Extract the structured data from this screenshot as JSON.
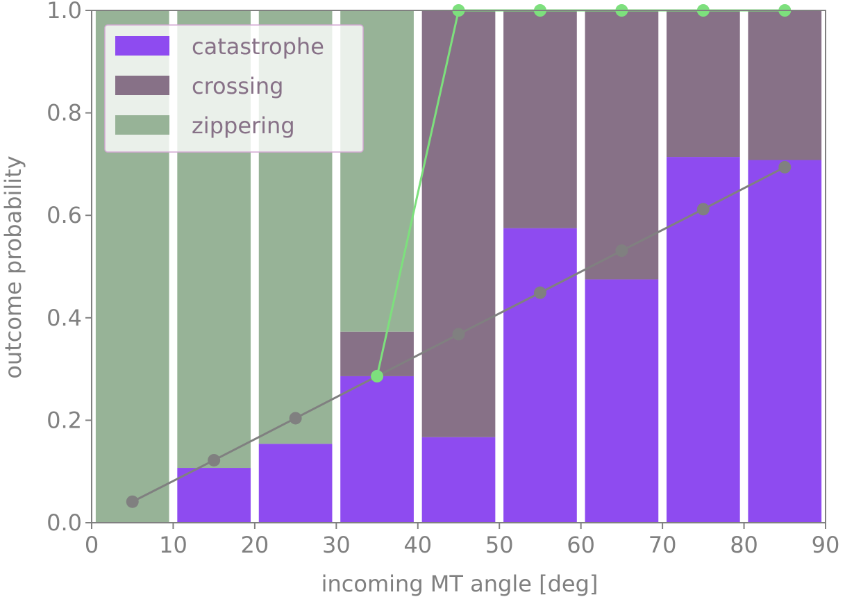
{
  "chart_data": {
    "type": "bar",
    "stacked": true,
    "xlabel": "incoming MT angle [deg]",
    "ylabel": "outcome probability",
    "xlim": [
      0,
      90
    ],
    "ylim": [
      0,
      1.0
    ],
    "xticks": [
      "0",
      "10",
      "20",
      "30",
      "40",
      "50",
      "60",
      "70",
      "80",
      "90"
    ],
    "yticks": [
      "0.0",
      "0.2",
      "0.4",
      "0.6",
      "0.8",
      "1.0"
    ],
    "bin_centers": [
      5,
      15,
      25,
      35,
      45,
      55,
      65,
      75,
      85
    ],
    "bar_width": 9,
    "legend_position": "top-left",
    "series": [
      {
        "name": "catastrophe",
        "color": "#8e4bf0",
        "values": [
          0.0,
          0.107,
          0.154,
          0.286,
          0.167,
          0.575,
          0.475,
          0.714,
          0.708
        ]
      },
      {
        "name": "crossing",
        "color": "#877187",
        "values": [
          0.0,
          0.0,
          0.0,
          0.087,
          0.833,
          0.425,
          0.525,
          0.286,
          0.292
        ]
      },
      {
        "name": "zippering",
        "color": "#97b397",
        "values": [
          1.0,
          0.893,
          0.846,
          0.627,
          0.0,
          0.0,
          0.0,
          0.0,
          0.0
        ]
      }
    ],
    "lines": [
      {
        "color": "#808080",
        "x": [
          5,
          15,
          25,
          35,
          45,
          55,
          65,
          75,
          85
        ],
        "y": [
          0.041,
          0.122,
          0.204,
          0.286,
          0.368,
          0.449,
          0.531,
          0.612,
          0.694
        ]
      },
      {
        "color": "#7de07d",
        "x": [
          35,
          45,
          55,
          65,
          75,
          85
        ],
        "y": [
          0.286,
          1.0,
          1.0,
          1.0,
          1.0,
          1.0
        ]
      }
    ]
  }
}
